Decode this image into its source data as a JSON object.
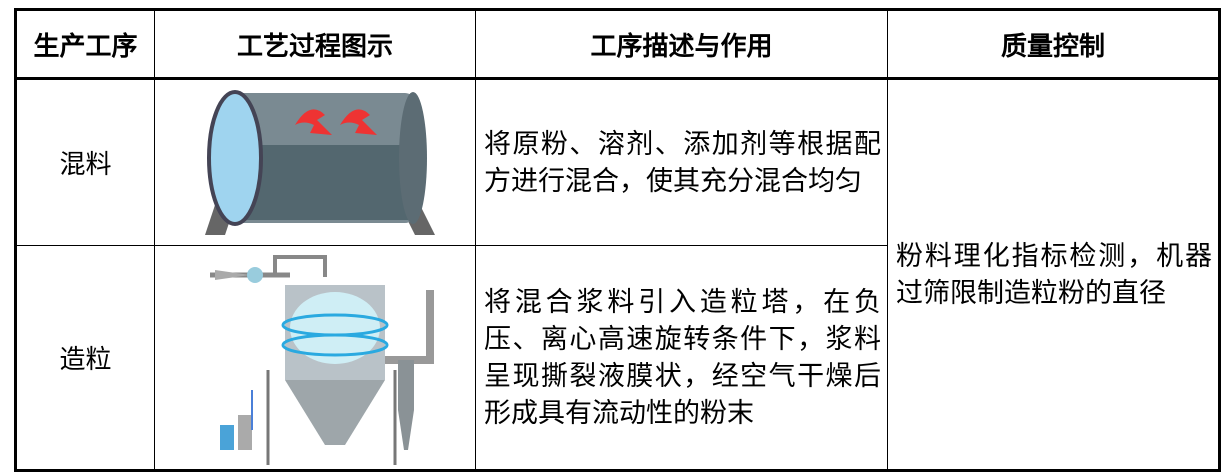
{
  "table": {
    "header": [
      "生产工序",
      "工艺过程图示",
      "工序描述与作用",
      "质量控制"
    ],
    "rows": [
      {
        "step": "混料",
        "description": "将原粉、溶剂、添加剂等根据配方进行混合，使其充分混合均匀"
      },
      {
        "step": "造粒",
        "description": "将混合浆料引入造粒塔，在负压、离心高速旋转条件下，浆料呈现撕裂液膜状，经空气干燥后形成具有流动性的粉末"
      }
    ],
    "quality_control": "粉料理化指标检测，机器过筛限制造粒粉的直径"
  }
}
